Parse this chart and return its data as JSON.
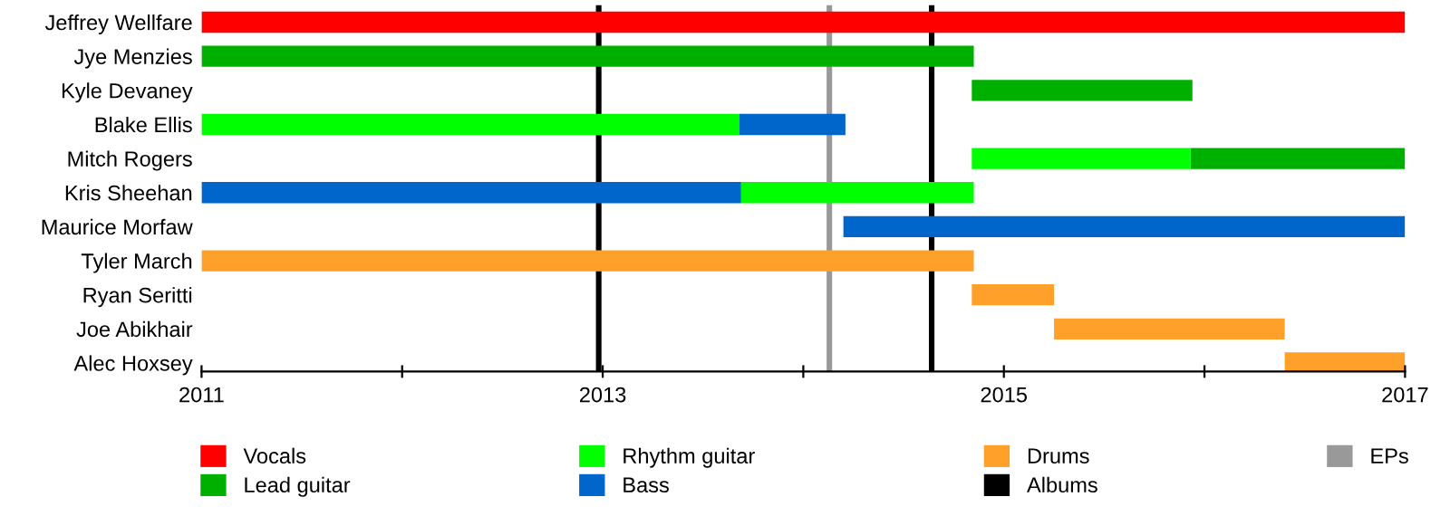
{
  "chart_data": {
    "type": "bar",
    "orientation": "horizontal",
    "categories": [
      "Jeffrey Wellfare",
      "Jye Menzies",
      "Kyle Devaney",
      "Blake Ellis",
      "Mitch Rogers",
      "Kris Sheehan",
      "Maurice Morfaw",
      "Tyler March",
      "Ryan Seritti",
      "Joe Abikhair",
      "Alec Hoxsey"
    ],
    "series": [
      {
        "name": "Vocals",
        "color": "#ff0000",
        "base": [
          2011,
          null,
          null,
          null,
          null,
          null,
          null,
          null,
          null,
          null,
          null
        ],
        "values": [
          6,
          null,
          null,
          null,
          null,
          null,
          null,
          null,
          null,
          null,
          null
        ]
      },
      {
        "name": "Lead guitar",
        "color": "#00b000",
        "base": [
          null,
          2011,
          2014.84,
          null,
          2015.93,
          null,
          null,
          null,
          null,
          null,
          null
        ],
        "values": [
          null,
          3.85,
          1.1,
          null,
          1.07,
          null,
          null,
          null,
          null,
          null,
          null
        ]
      },
      {
        "name": "Rhythm guitar",
        "color": "#00ff00",
        "base": [
          null,
          null,
          null,
          2011,
          2014.84,
          2013.69,
          null,
          null,
          null,
          null,
          null
        ],
        "values": [
          null,
          null,
          null,
          2.68,
          1.09,
          1.16,
          null,
          null,
          null,
          null,
          null
        ]
      },
      {
        "name": "Bass",
        "color": "#0066cc",
        "base": [
          null,
          null,
          null,
          2013.68,
          null,
          2011,
          2014.2,
          null,
          null,
          null,
          null
        ],
        "values": [
          null,
          null,
          null,
          0.53,
          null,
          2.69,
          2.8,
          null,
          null,
          null,
          null
        ]
      },
      {
        "name": "Drums",
        "color": "#ffa02a",
        "base": [
          null,
          null,
          null,
          null,
          null,
          null,
          null,
          2011,
          2014.84,
          2015.25,
          2016.4
        ],
        "values": [
          null,
          null,
          null,
          null,
          null,
          null,
          null,
          3.85,
          0.41,
          1.15,
          0.6
        ]
      }
    ],
    "ref_lines": [
      {
        "axis": "x",
        "value": 2012.98,
        "label": "Albums",
        "color": "#000000"
      },
      {
        "axis": "x",
        "value": 2014.13,
        "label": "EPs",
        "color": "#999999"
      },
      {
        "axis": "x",
        "value": 2014.64,
        "color": "#000000"
      }
    ],
    "xlim": [
      2011,
      2017
    ],
    "xticks": [
      2011,
      {
        "value": 2012,
        "label": null
      },
      2013,
      {
        "value": 2014,
        "label": null
      },
      2015,
      {
        "value": 2016,
        "label": null
      },
      2017
    ],
    "grid": false,
    "legend": "bottom"
  }
}
